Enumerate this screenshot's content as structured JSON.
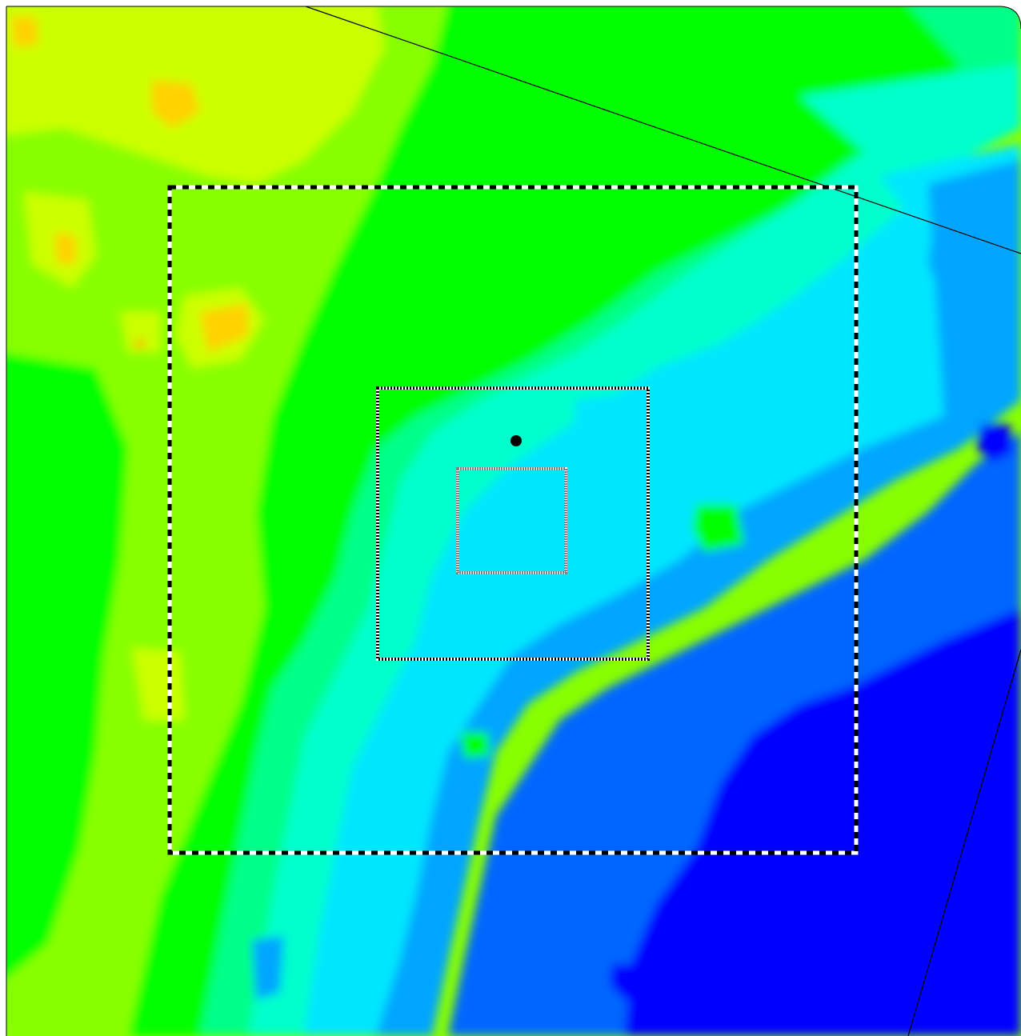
{
  "map": {
    "kind": "topographic elevation color map",
    "colors": {
      "highest": "#ff9f00",
      "high": "#ffd200",
      "upper": "#ccff00",
      "upper_mid": "#88ff00",
      "mid_high": "#00ff00",
      "mid": "#00ff88",
      "mid_low": "#00ffcc",
      "low_mid": "#00e6ff",
      "low": "#00a5ff",
      "lower": "#0066ff",
      "lowest": "#0000ff",
      "deepest": "#3a00ff",
      "frame_dark": "#000000",
      "frame_light": "#ffffff",
      "inner_frame": "#808080",
      "marker": "#000000"
    },
    "overlays": [
      {
        "name": "outer-study-area",
        "style": "black-white dashed"
      },
      {
        "name": "middle-study-area",
        "style": "black-white checkered"
      },
      {
        "name": "inner-study-area",
        "style": "grey-white checkered"
      }
    ],
    "marker": {
      "name": "site-point",
      "icon": "filled-circle-marker-icon"
    },
    "lines": [
      {
        "name": "northeast-boundary-line"
      },
      {
        "name": "southeast-boundary-line"
      }
    ]
  }
}
